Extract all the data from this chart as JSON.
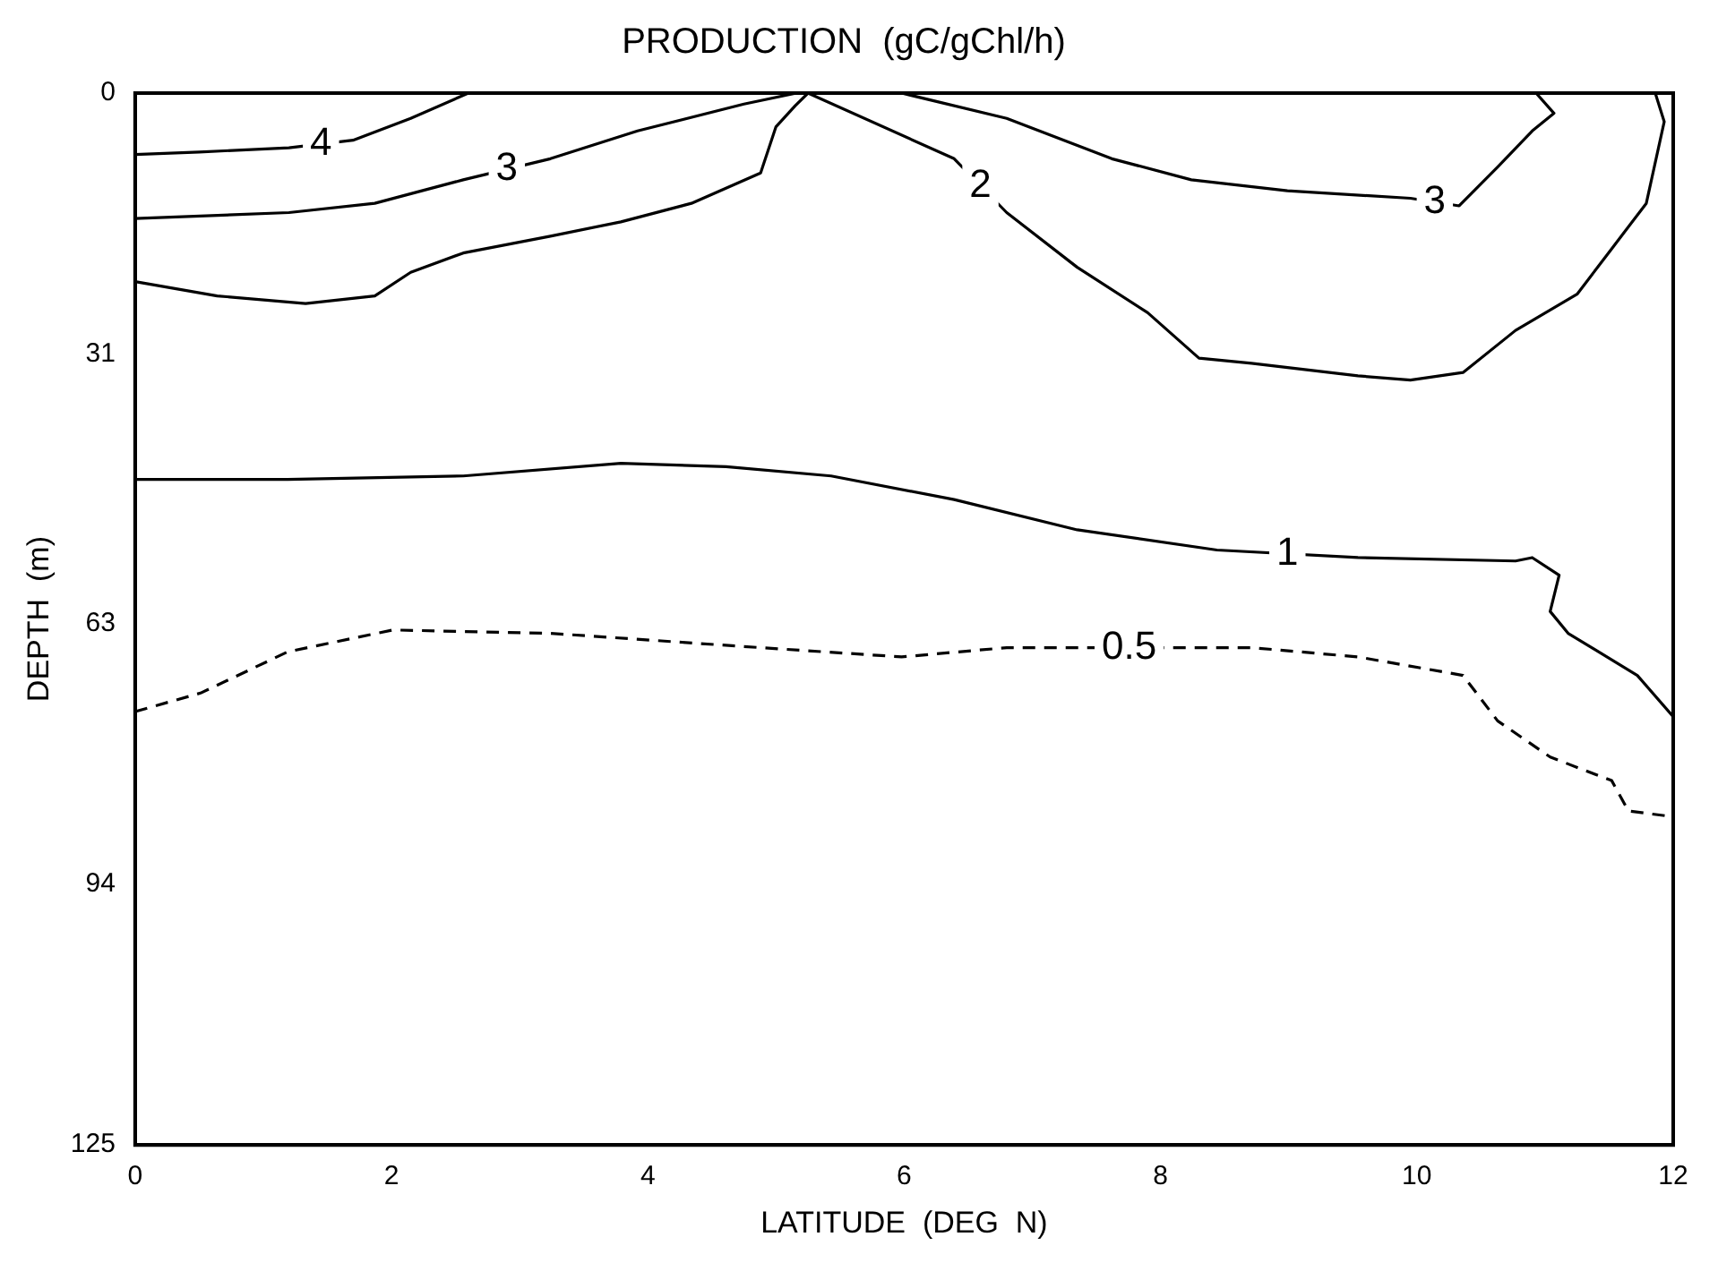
{
  "chart_data": {
    "type": "line",
    "title": "PRODUCTION  (gC/gChl/h)",
    "xlabel": "LATITUDE  (DEG  N)",
    "ylabel": "DEPTH  (m)",
    "xlim": [
      0,
      12
    ],
    "xticks": [
      0,
      2,
      4,
      6,
      8,
      10,
      12
    ],
    "ylim": [
      125,
      0
    ],
    "yticks": [
      0,
      31,
      63,
      94,
      125
    ],
    "grid": false,
    "legend": false,
    "series": [
      {
        "name": "4",
        "color": "#000000",
        "line_style": "solid",
        "x": [
          0,
          0.5,
          1.2,
          1.7,
          2.15,
          2.6
        ],
        "values": [
          7.3,
          7,
          6.5,
          5.6,
          3,
          0
        ]
      },
      {
        "name": "3",
        "color": "#000000",
        "line_style": "solid",
        "x": [
          0,
          1.2,
          1.87,
          2.56,
          3.24,
          3.92,
          4.75,
          5.16
        ],
        "values": [
          14.9,
          14.2,
          13.1,
          10.3,
          7.8,
          4.5,
          1.3,
          0
        ]
      },
      {
        "name": "3",
        "color": "#000000",
        "line_style": "solid",
        "x": [
          5.98,
          6.8,
          7.62,
          8.24,
          8.99,
          9.95,
          10.33,
          10.63,
          10.9,
          11.07,
          10.93
        ],
        "values": [
          0,
          3,
          7.8,
          10.3,
          11.6,
          12.5,
          13.4,
          8.8,
          4.5,
          2.4,
          0
        ]
      },
      {
        "name": "2",
        "color": "#000000",
        "line_style": "solid",
        "x": [
          0,
          0.64,
          1.33,
          1.87,
          2.15,
          2.56,
          3.24,
          3.79,
          4.34,
          4.88,
          5.0,
          5.15,
          5.25,
          6.39,
          6.8,
          7.35,
          7.9,
          8.3,
          8.71,
          9.54,
          9.95,
          10.36,
          10.77,
          11.25,
          11.52,
          11.79,
          11.93,
          11.86
        ],
        "values": [
          22.4,
          24.1,
          25,
          24.1,
          21.3,
          19,
          17,
          15.3,
          13.1,
          9.5,
          4,
          1.5,
          0,
          7.8,
          14.2,
          20.7,
          26.1,
          31.5,
          32.1,
          33.6,
          34.1,
          33.2,
          28.2,
          23.9,
          18.5,
          13.1,
          3.4,
          0
        ]
      },
      {
        "name": "1",
        "color": "#000000",
        "line_style": "solid",
        "x": [
          0,
          1.19,
          2.56,
          3.79,
          4.61,
          5.43,
          6.39,
          7.35,
          8.44,
          9.54,
          10.77,
          10.9,
          11.11,
          11.04,
          11.18,
          11.72,
          12
        ],
        "values": [
          45.9,
          45.9,
          45.5,
          44,
          44.4,
          45.5,
          48.3,
          51.9,
          54.3,
          55.2,
          55.6,
          55.2,
          57.3,
          61.6,
          64.2,
          69.2,
          74.1
        ]
      },
      {
        "name": "0.5",
        "color": "#000000",
        "line_style": "dashed",
        "x": [
          0,
          0.51,
          1.19,
          2.01,
          3.24,
          4.88,
          5.98,
          6.8,
          8.71,
          9.54,
          10.36,
          10.63,
          11.04,
          11.52,
          11.65,
          12
        ],
        "values": [
          73.5,
          71.3,
          66.4,
          63.8,
          64.2,
          65.9,
          67,
          65.9,
          65.9,
          67,
          69.2,
          74.6,
          78.9,
          81.7,
          85.3,
          86
        ]
      }
    ]
  }
}
